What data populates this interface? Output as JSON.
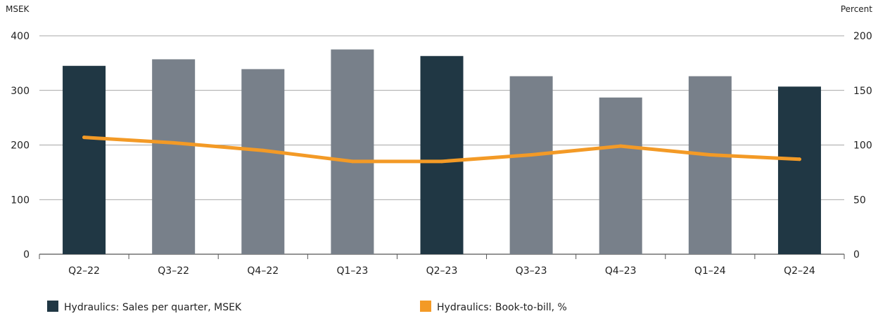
{
  "chart_data": {
    "type": "bar",
    "categories": [
      "Q2–22",
      "Q3–22",
      "Q4–22",
      "Q1–23",
      "Q2–23",
      "Q3–23",
      "Q4–23",
      "Q1–24",
      "Q2–24"
    ],
    "series": [
      {
        "name": "Hydraulics: Sales per quarter, MSEK",
        "type": "bar",
        "axis": "left",
        "color": "#203744",
        "alt_color": "#78808a",
        "highlight": [
          true,
          false,
          false,
          false,
          true,
          false,
          false,
          false,
          true
        ],
        "values": [
          345,
          357,
          339,
          375,
          363,
          326,
          287,
          326,
          307
        ]
      },
      {
        "name": "Hydraulics: Book-to-bill, %",
        "type": "line",
        "axis": "right",
        "color": "#f39a26",
        "values": [
          107,
          102,
          95,
          85,
          85,
          91,
          99,
          91,
          87
        ]
      }
    ],
    "left_axis": {
      "unit": "MSEK",
      "min": 0,
      "max": 400,
      "ticks": [
        "0",
        "100",
        "200",
        "300",
        "400"
      ]
    },
    "right_axis": {
      "unit": "Percent",
      "min": 0,
      "max": 200,
      "ticks": [
        "0",
        "50",
        "100",
        "150",
        "200"
      ]
    },
    "grid": true,
    "legend": "bottom"
  }
}
